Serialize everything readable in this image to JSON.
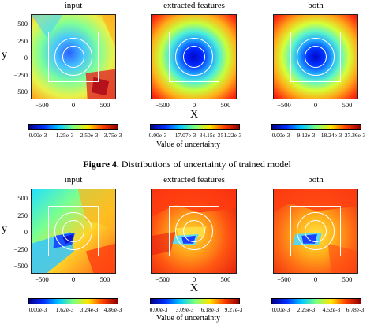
{
  "row1": {
    "panels": [
      {
        "title": "input",
        "cbar_ticks": [
          "0.00e-3",
          "1.25e-3",
          "2.50e-3",
          "3.75e-3"
        ]
      },
      {
        "title": "extracted features",
        "cbar_ticks": [
          "0.00e-3",
          "17.07e-3",
          "34.15e-3",
          "51.22e-3"
        ]
      },
      {
        "title": "both",
        "cbar_ticks": [
          "0.00e-3",
          "9.12e-3",
          "18.24e-3",
          "27.36e-3"
        ]
      }
    ],
    "x_axis_label": "X",
    "y_axis_label": "y",
    "cbar_label": "Value of uncertainty"
  },
  "caption": {
    "bold": "Figure 4.",
    "text": " Distributions of uncertainty of trained model"
  },
  "row2": {
    "panels": [
      {
        "title": "input",
        "cbar_ticks": [
          "0.00e-3",
          "1.62e-3",
          "3.24e-3",
          "4.86e-3"
        ]
      },
      {
        "title": "extracted features",
        "cbar_ticks": [
          "0.00e-3",
          "3.09e-3",
          "6.18e-3",
          "9.27e-3"
        ]
      },
      {
        "title": "both",
        "cbar_ticks": [
          "0.00e-3",
          "2.26e-3",
          "4.52e-3",
          "6.78e-3"
        ]
      }
    ],
    "x_axis_label": "X",
    "y_axis_label": "y",
    "cbar_label": "Value of uncertainty"
  },
  "y_ticks": [
    "500",
    "250",
    "0",
    "−250",
    "−500"
  ],
  "x_ticks": [
    "−500",
    "0",
    "500"
  ],
  "colormap": "jet"
}
